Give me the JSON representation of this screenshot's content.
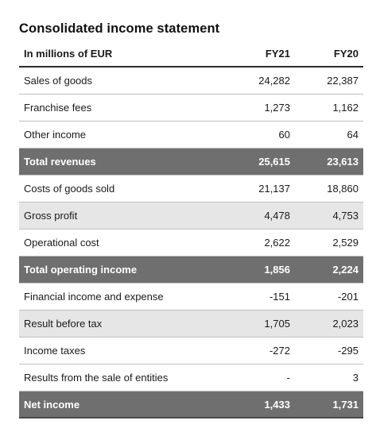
{
  "title": "Consolidated income statement",
  "header": {
    "label": "In millions of EUR",
    "col1": "FY21",
    "col2": "FY20"
  },
  "rows": [
    {
      "label": "Sales of goods",
      "fy21": "24,282",
      "fy20": "22,387",
      "style": "plain"
    },
    {
      "label": "Franchise fees",
      "fy21": "1,273",
      "fy20": "1,162",
      "style": "plain"
    },
    {
      "label": "Other income",
      "fy21": "60",
      "fy20": "64",
      "style": "plain"
    },
    {
      "label": "Total revenues",
      "fy21": "25,615",
      "fy20": "23,613",
      "style": "total"
    },
    {
      "label": "Costs of goods sold",
      "fy21": "21,137",
      "fy20": "18,860",
      "style": "plain"
    },
    {
      "label": "Gross profit",
      "fy21": "4,478",
      "fy20": "4,753",
      "style": "shaded"
    },
    {
      "label": "Operational cost",
      "fy21": "2,622",
      "fy20": "2,529",
      "style": "plain"
    },
    {
      "label": "Total operating income",
      "fy21": "1,856",
      "fy20": "2,224",
      "style": "total"
    },
    {
      "label": "Financial income and expense",
      "fy21": "-151",
      "fy20": "-201",
      "style": "plain"
    },
    {
      "label": "Result before tax",
      "fy21": "1,705",
      "fy20": "2,023",
      "style": "shaded"
    },
    {
      "label": "Income taxes",
      "fy21": "-272",
      "fy20": "-295",
      "style": "plain"
    },
    {
      "label": "Results from the sale of entities",
      "fy21": "-",
      "fy20": "3",
      "style": "plain"
    },
    {
      "label": "Net income",
      "fy21": "1,433",
      "fy20": "1,731",
      "style": "total"
    }
  ],
  "colors": {
    "total_bg": "#6f6f6f",
    "shaded_bg": "#e6e6e6",
    "rule": "#bfbfbf"
  }
}
